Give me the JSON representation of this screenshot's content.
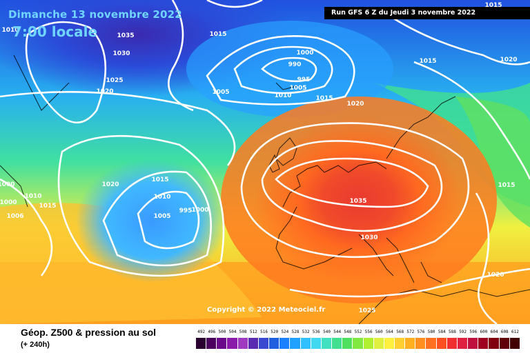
{
  "header": {
    "date": "Dimanche 13 novembre 2022",
    "time": "7:00 locale",
    "run": "Run GFS 6 Z du Jeudi 3 novembre 2022"
  },
  "copyright": "Copyright © 2022 Meteociel.fr",
  "footer": {
    "title": "Géop. Z500 & pression au sol",
    "subtitle": "(+ 240h)"
  },
  "legend": {
    "values": [
      "492",
      "496",
      "500",
      "504",
      "508",
      "512",
      "516",
      "520",
      "524",
      "528",
      "532",
      "536",
      "540",
      "544",
      "548",
      "552",
      "556",
      "560",
      "564",
      "568",
      "572",
      "576",
      "580",
      "584",
      "588",
      "592",
      "596",
      "600",
      "604",
      "608",
      "612"
    ],
    "colors": [
      "#2a0030",
      "#4b0060",
      "#6a0a8a",
      "#8a1aaa",
      "#a03ac0",
      "#5a2ab0",
      "#3a4ad0",
      "#2060e0",
      "#1a80ff",
      "#20a0ff",
      "#30c0ff",
      "#40d8f0",
      "#40e0c0",
      "#40e090",
      "#50e060",
      "#80e840",
      "#b0f030",
      "#e0f040",
      "#fff040",
      "#ffd030",
      "#ffb020",
      "#ff9020",
      "#ff7020",
      "#ff5020",
      "#f03030",
      "#e02040",
      "#c01040",
      "#a00020",
      "#800010",
      "#600008",
      "#400004"
    ]
  },
  "pressure_labels": [
    {
      "text": "1010"
    },
    {
      "text": "1015"
    },
    {
      "text": "1035"
    },
    {
      "text": "1030"
    },
    {
      "text": "1025"
    },
    {
      "text": "1020"
    },
    {
      "text": "1015"
    },
    {
      "text": "1000"
    },
    {
      "text": "990"
    },
    {
      "text": "995"
    },
    {
      "text": "1005"
    },
    {
      "text": "1005"
    },
    {
      "text": "1010"
    },
    {
      "text": "1015"
    },
    {
      "text": "1020"
    },
    {
      "text": "1015"
    },
    {
      "text": "1020"
    },
    {
      "text": "1020"
    },
    {
      "text": "1015"
    },
    {
      "text": "1010"
    },
    {
      "text": "1005"
    },
    {
      "text": "995"
    },
    {
      "text": "1000"
    },
    {
      "text": "1035"
    },
    {
      "text": "1030"
    },
    {
      "text": "1015"
    },
    {
      "text": "1020"
    },
    {
      "text": "1025"
    },
    {
      "text": "1000"
    },
    {
      "text": "1010"
    },
    {
      "text": "1000"
    },
    {
      "text": "1015"
    },
    {
      "text": "1006"
    }
  ],
  "colors": {
    "run_bg": "#000000",
    "header_text": "#6fd4ff"
  }
}
